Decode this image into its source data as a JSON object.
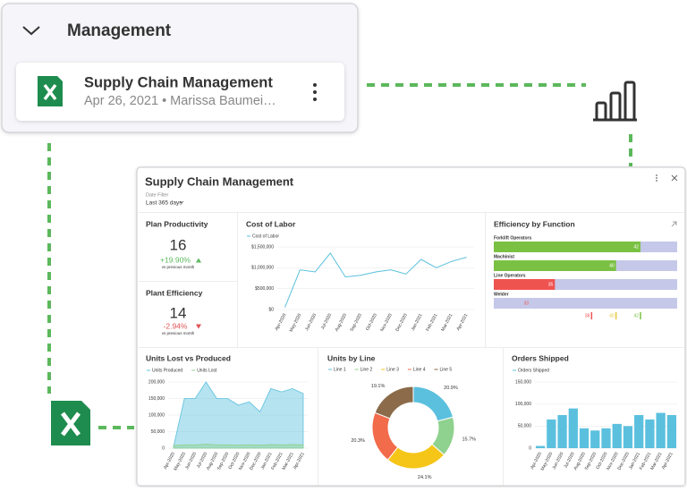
{
  "card": {
    "section": "Management",
    "file": "Supply Chain Management",
    "meta": "Apr 26, 2021 • Marissa Baumei…"
  },
  "dashboard": {
    "title": "Supply Chain Management",
    "filter_label": "Date Filter",
    "filter_value": "Last 365 days",
    "kpis": [
      {
        "title": "Plan Productivity",
        "value": 16,
        "change": "+19.90%",
        "change_color": "#5cb85c",
        "caption": "vs previous month"
      },
      {
        "title": "Plant Efficiency",
        "value": 14,
        "change": "-2.94%",
        "change_color": "#e05252",
        "caption": "vs previous month"
      }
    ]
  },
  "chart_data": [
    {
      "type": "line",
      "title": "Cost of Labor",
      "categories": [
        "Apr-2020",
        "May-2020",
        "Jun-2020",
        "Jul-2020",
        "Aug-2020",
        "Sep-2020",
        "Oct-2020",
        "Nov-2020",
        "Dec-2020",
        "Jan-2021",
        "Feb-2021",
        "Mar-2021",
        "Apr-2021"
      ],
      "series": [
        {
          "name": "Cost of Labor",
          "color": "#5bc0de",
          "values": [
            50000,
            950000,
            900000,
            1350000,
            780000,
            820000,
            900000,
            950000,
            850000,
            1200000,
            1000000,
            1150000,
            1250000
          ]
        }
      ],
      "ylim": [
        0,
        1500000
      ],
      "yticks": [
        {
          "value": 0,
          "label": "$0"
        },
        {
          "value": 500000,
          "label": "$500,000"
        },
        {
          "value": 1000000,
          "label": "$1,000,000"
        },
        {
          "value": 1500000,
          "label": "$1,500,000"
        }
      ]
    },
    {
      "type": "hbar",
      "title": "Efficiency by Function",
      "categories": [
        "Forklift Operators",
        "Machinist",
        "Line Operators",
        "Welder"
      ],
      "values": [
        42,
        40,
        35,
        33
      ],
      "colors": [
        "#7ac143",
        "#7ac143",
        "#ef5350",
        "#c5c8e8"
      ],
      "xlim": [
        30,
        45
      ],
      "thresholds": [
        38,
        40,
        42
      ],
      "threshold_colors": [
        "#ef5350",
        "#e8c83a",
        "#7ac143"
      ]
    },
    {
      "type": "area",
      "title": "Units Lost vs Produced",
      "categories": [
        "Apr-2020",
        "May-2020",
        "Jun-2020",
        "Jul-2020",
        "Aug-2020",
        "Sep-2020",
        "Oct-2020",
        "Nov-2020",
        "Dec-2020",
        "Jan-2021",
        "Feb-2021",
        "Mar-2021",
        "Apr-2021"
      ],
      "series": [
        {
          "name": "Units Produced",
          "color": "#5bc0de",
          "values": [
            5000,
            150000,
            150000,
            200000,
            150000,
            150000,
            130000,
            140000,
            110000,
            180000,
            170000,
            180000,
            165000
          ]
        },
        {
          "name": "Units Lost",
          "color": "#8fd18f",
          "values": [
            8000,
            10000,
            10000,
            12000,
            10000,
            10000,
            9000,
            10000,
            9000,
            11000,
            10000,
            11000,
            10000
          ]
        }
      ],
      "ylim": [
        0,
        200000
      ],
      "yticks": [
        0,
        {
          "value": 50000,
          "label": "50,000"
        },
        {
          "value": 100000,
          "label": "100,000"
        },
        {
          "value": 150000,
          "label": "150,000"
        },
        {
          "value": 200000,
          "label": "200,000"
        }
      ]
    },
    {
      "type": "pie",
      "donut": true,
      "title": "Units by Line",
      "categories": [
        "Line 1",
        "Line 2",
        "Line 3",
        "Line 4",
        "Line 5"
      ],
      "values": [
        20.9,
        15.7,
        24.1,
        20.3,
        19.1
      ],
      "value_labels": [
        "20.9%",
        "15.7%",
        "24.1%",
        "20.3%",
        "19.1%"
      ],
      "colors": [
        "#5bc0de",
        "#8fd18f",
        "#f5c518",
        "#f26b4a",
        "#8b6b4a"
      ]
    },
    {
      "type": "bar",
      "title": "Orders Shipped",
      "categories": [
        "Apr-2020",
        "May-2020",
        "Jun-2020",
        "Jul-2020",
        "Aug-2020",
        "Sep-2020",
        "Oct-2020",
        "Nov-2020",
        "Dec-2020",
        "Jan-2021",
        "Feb-2021",
        "Mar-2021",
        "Apr-2021"
      ],
      "series": [
        {
          "name": "Orders Shipped",
          "color": "#5bc0de",
          "values": [
            5000,
            65000,
            75000,
            90000,
            45000,
            40000,
            45000,
            55000,
            50000,
            75000,
            65000,
            80000,
            75000
          ]
        }
      ],
      "ylim": [
        0,
        150000
      ],
      "yticks": [
        0,
        {
          "value": 50000,
          "label": "50,000"
        },
        {
          "value": 100000,
          "label": "100,000"
        },
        {
          "value": 150000,
          "label": "150,000"
        }
      ]
    }
  ]
}
